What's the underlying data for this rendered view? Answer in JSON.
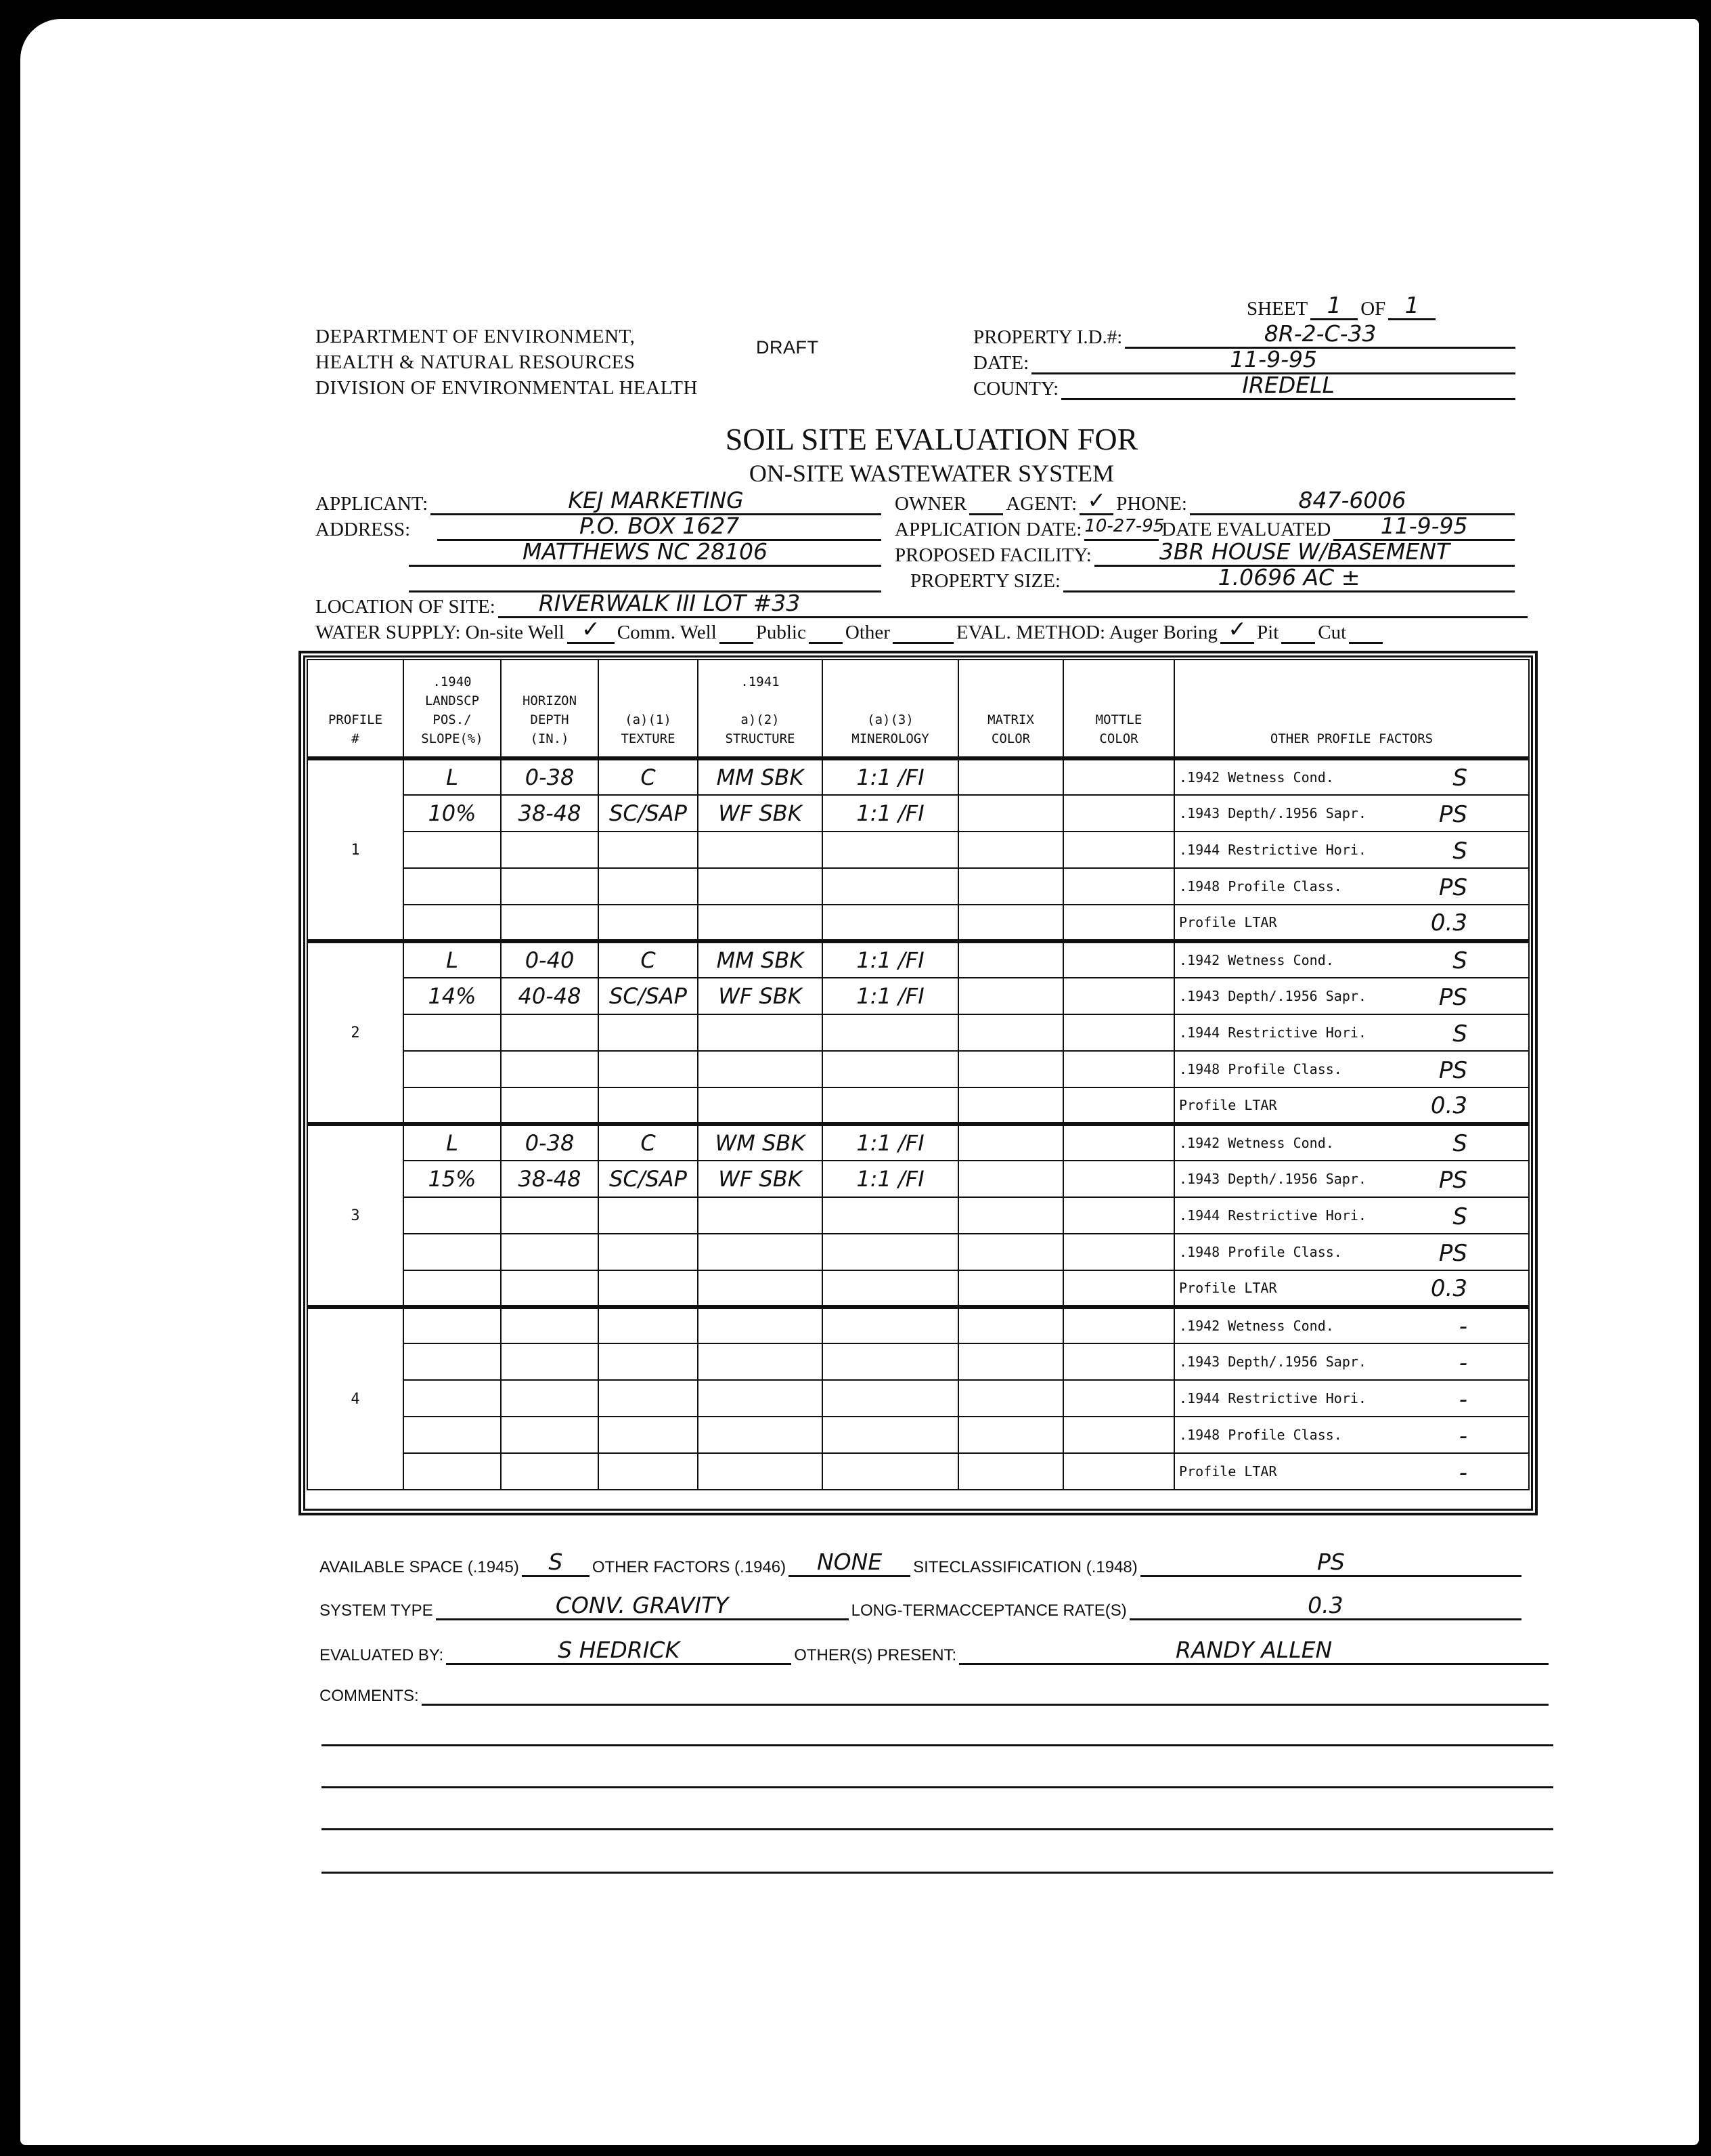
{
  "header": {
    "dept_lines": [
      "DEPARTMENT OF ENVIRONMENT,",
      "HEALTH & NATURAL RESOURCES",
      "DIVISION OF ENVIRONMENTAL HEALTH"
    ],
    "draft": "DRAFT",
    "sheet_label": "SHEET",
    "sheet_value": "1",
    "of_label": "OF",
    "of_value": "1",
    "property_id_label": "PROPERTY I.D.#:",
    "property_id": "8R-2-C-33",
    "date_label": "DATE:",
    "date": "11-9-95",
    "county_label": "COUNTY:",
    "county": "IREDELL"
  },
  "title": "SOIL SITE EVALUATION FOR",
  "subtitle": "ON-SITE WASTEWATER SYSTEM",
  "info": {
    "applicant_label": "APPLICANT:",
    "applicant": "KEJ MARKETING",
    "owner_label": "OWNER",
    "agent_label": "AGENT:",
    "agent_mark": "✓",
    "phone_label": "PHONE:",
    "phone": "847-6006",
    "address_label": "ADDRESS:",
    "address1": "P.O. BOX 1627",
    "address2": "MATTHEWS NC 28106",
    "application_date_label": "APPLICATION DATE:",
    "application_date": "10-27-95",
    "date_evaluated_label": "DATE EVALUATED",
    "date_evaluated": "11-9-95",
    "proposed_facility_label": "PROPOSED FACILITY:",
    "proposed_facility": "3BR HOUSE W/BASEMENT",
    "property_size_label": "PROPERTY SIZE:",
    "property_size": "1.0696 AC ±",
    "location_label": "LOCATION OF SITE:",
    "location": "RIVERWALK III LOT #33",
    "water_supply_label": "WATER SUPPLY: On-site Well",
    "comm_well_label": "Comm. Well",
    "public_label": "Public",
    "other_label": "Other",
    "water_supply_mark": "✓",
    "eval_method_label": "EVAL. METHOD: Auger Boring",
    "pit_label": "Pit",
    "cut_label": "Cut",
    "eval_method_mark": "✓"
  },
  "table": {
    "headers": [
      "PROFILE<br>#",
      ".1940<br>LANDSCP<br>POS./<br>SLOPE(%)",
      "HORIZON<br>DEPTH<br>(IN.)",
      "(a)(1)<br>TEXTURE",
      ".1941<br><br>a)(2)<br>STRUCTURE",
      "(a)(3)<br>MINEROLOGY",
      "MATRIX<br>COLOR",
      "MOTTLE<br>COLOR",
      "OTHER PROFILE FACTORS"
    ],
    "factor_labels": [
      ".1942 Wetness Cond.",
      ".1943 Depth/.1956 Sapr.",
      ".1944 Restrictive Hori.",
      ".1948 Profile Class.",
      "Profile LTAR"
    ],
    "profiles": [
      {
        "number": "1",
        "rows": [
          [
            "L",
            "0-38",
            "C",
            "MM SBK",
            "1:1 /FI",
            "",
            ""
          ],
          [
            "10%",
            "38-48",
            "SC/SAP",
            "WF SBK",
            "1:1 /FI",
            "",
            ""
          ],
          [
            "",
            "",
            "",
            "",
            "",
            "",
            ""
          ],
          [
            "",
            "",
            "",
            "",
            "",
            "",
            ""
          ],
          [
            "",
            "",
            "",
            "",
            "",
            "",
            ""
          ]
        ],
        "factors": [
          "S",
          "PS",
          "S",
          "PS",
          "0.3"
        ]
      },
      {
        "number": "2",
        "rows": [
          [
            "L",
            "0-40",
            "C",
            "MM SBK",
            "1:1 /FI",
            "",
            ""
          ],
          [
            "14%",
            "40-48",
            "SC/SAP",
            "WF SBK",
            "1:1 /FI",
            "",
            ""
          ],
          [
            "",
            "",
            "",
            "",
            "",
            "",
            ""
          ],
          [
            "",
            "",
            "",
            "",
            "",
            "",
            ""
          ],
          [
            "",
            "",
            "",
            "",
            "",
            "",
            ""
          ]
        ],
        "factors": [
          "S",
          "PS",
          "S",
          "PS",
          "0.3"
        ]
      },
      {
        "number": "3",
        "rows": [
          [
            "L",
            "0-38",
            "C",
            "WM SBK",
            "1:1 /FI",
            "",
            ""
          ],
          [
            "15%",
            "38-48",
            "SC/SAP",
            "WF SBK",
            "1:1 /FI",
            "",
            ""
          ],
          [
            "",
            "",
            "",
            "",
            "",
            "",
            ""
          ],
          [
            "",
            "",
            "",
            "",
            "",
            "",
            ""
          ],
          [
            "",
            "",
            "",
            "",
            "",
            "",
            ""
          ]
        ],
        "factors": [
          "S",
          "PS",
          "S",
          "PS",
          "0.3"
        ]
      },
      {
        "number": "4",
        "rows": [
          [
            "",
            "",
            "",
            "",
            "",
            "",
            ""
          ],
          [
            "",
            "",
            "",
            "",
            "",
            "",
            ""
          ],
          [
            "",
            "",
            "",
            "",
            "",
            "",
            ""
          ],
          [
            "",
            "",
            "",
            "",
            "",
            "",
            ""
          ],
          [
            "",
            "",
            "",
            "",
            "",
            "",
            ""
          ]
        ],
        "factors": [
          "-",
          "-",
          "-",
          "-",
          "-"
        ]
      }
    ]
  },
  "footer": {
    "available_space_label": "AVAILABLE SPACE (.1945)",
    "available_space": "S",
    "other_factors_label": "OTHER FACTORS (.1946)",
    "other_factors": "NONE",
    "site_class_label": "SITECLASSIFICATION (.1948)",
    "site_class": "PS",
    "system_type_label": "SYSTEM TYPE",
    "system_type": "CONV. GRAVITY",
    "ltar_label": "LONG-TERMACCEPTANCE RATE(S)",
    "ltar": "0.3",
    "evaluated_by_label": "EVALUATED BY:",
    "evaluated_by": "S HEDRICK",
    "others_present_label": "OTHER(S) PRESENT:",
    "others_present": "RANDY ALLEN",
    "comments_label": "COMMENTS:",
    "comments": ""
  }
}
